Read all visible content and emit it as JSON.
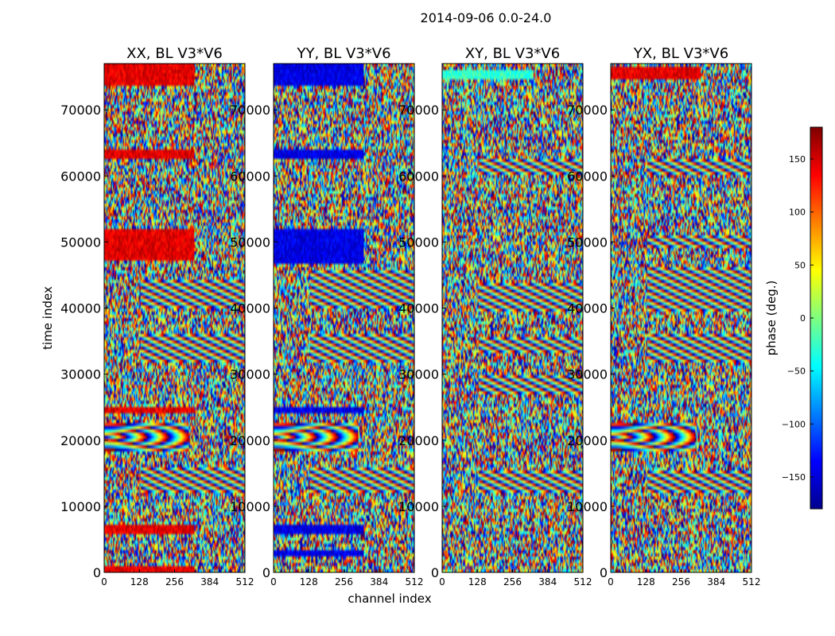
{
  "chart_data": {
    "type": "heatmap",
    "suptitle": "2014-09-06 0.0-24.0",
    "xlabel": "channel index",
    "ylabel": "time index",
    "xlim": [
      0,
      512
    ],
    "ylim": [
      0,
      77000
    ],
    "x_ticks": [
      "0",
      "128",
      "256",
      "384",
      "512"
    ],
    "y_ticks": [
      "0",
      "10000",
      "20000",
      "30000",
      "40000",
      "50000",
      "60000",
      "70000"
    ],
    "panels": [
      {
        "title": "XX, BL V3*V6",
        "bands": [
          {
            "y0": 0,
            "y1": 1000,
            "kind": "red"
          },
          {
            "y0": 6000,
            "y1": 7000,
            "kind": "red"
          },
          {
            "y0": 12000,
            "y1": 16000,
            "kind": "fringe"
          },
          {
            "y0": 18500,
            "y1": 22500,
            "kind": "arcs"
          },
          {
            "y0": 24000,
            "y1": 25200,
            "kind": "red"
          },
          {
            "y0": 32000,
            "y1": 36000,
            "kind": "fringe"
          },
          {
            "y0": 40000,
            "y1": 44500,
            "kind": "fringe"
          },
          {
            "y0": 47000,
            "y1": 52000,
            "kind": "red"
          },
          {
            "y0": 62800,
            "y1": 64200,
            "kind": "red"
          },
          {
            "y0": 73500,
            "y1": 77000,
            "kind": "red"
          }
        ]
      },
      {
        "title": "YY, BL V3*V6",
        "bands": [
          {
            "y0": 2500,
            "y1": 3300,
            "kind": "blue"
          },
          {
            "y0": 6000,
            "y1": 7000,
            "kind": "blue"
          },
          {
            "y0": 12000,
            "y1": 16000,
            "kind": "fringe"
          },
          {
            "y0": 18500,
            "y1": 22500,
            "kind": "arcs"
          },
          {
            "y0": 24000,
            "y1": 25200,
            "kind": "blue"
          },
          {
            "y0": 32000,
            "y1": 36000,
            "kind": "fringe"
          },
          {
            "y0": 40000,
            "y1": 45500,
            "kind": "fringe"
          },
          {
            "y0": 46500,
            "y1": 52000,
            "kind": "blue"
          },
          {
            "y0": 62800,
            "y1": 64200,
            "kind": "blue"
          },
          {
            "y0": 73500,
            "y1": 77000,
            "kind": "blue"
          }
        ]
      },
      {
        "title": "XY, BL V3*V6",
        "bands": [
          {
            "y0": 12000,
            "y1": 15500,
            "kind": "fringe"
          },
          {
            "y0": 27000,
            "y1": 30000,
            "kind": "fringe"
          },
          {
            "y0": 33000,
            "y1": 35500,
            "kind": "fringe"
          },
          {
            "y0": 39500,
            "y1": 44000,
            "kind": "fringe"
          },
          {
            "y0": 60000,
            "y1": 62500,
            "kind": "fringe"
          },
          {
            "y0": 74500,
            "y1": 76000,
            "kind": "cyan"
          }
        ]
      },
      {
        "title": "YX, BL V3*V6",
        "bands": [
          {
            "y0": 12000,
            "y1": 15500,
            "kind": "fringe"
          },
          {
            "y0": 18500,
            "y1": 22500,
            "kind": "arcs"
          },
          {
            "y0": 32000,
            "y1": 36000,
            "kind": "fringe"
          },
          {
            "y0": 39500,
            "y1": 46000,
            "kind": "fringe"
          },
          {
            "y0": 49000,
            "y1": 51000,
            "kind": "fringe"
          },
          {
            "y0": 60000,
            "y1": 62500,
            "kind": "fringe"
          },
          {
            "y0": 74500,
            "y1": 76500,
            "kind": "red"
          }
        ]
      }
    ],
    "colorbar": {
      "label": "phase (deg.)",
      "range": [
        -180,
        180
      ],
      "ticks": [
        "150",
        "100",
        "50",
        "0",
        "−50",
        "−100",
        "−150"
      ],
      "tick_values": [
        150,
        100,
        50,
        0,
        -50,
        -100,
        -150
      ],
      "colormap": "jet"
    }
  }
}
